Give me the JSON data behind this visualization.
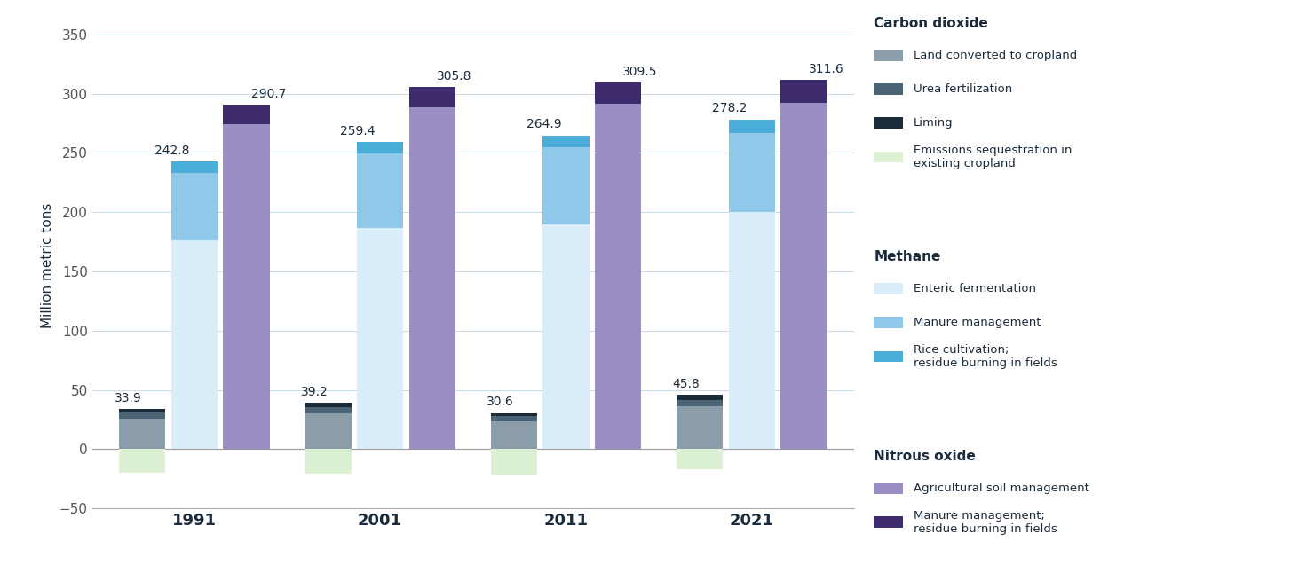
{
  "years": [
    "1991",
    "2001",
    "2011",
    "2021"
  ],
  "co2_totals": [
    33.9,
    39.2,
    30.6,
    45.8
  ],
  "methane_totals": [
    242.8,
    259.4,
    264.9,
    278.2
  ],
  "n2o_totals": [
    290.7,
    305.8,
    309.5,
    311.6
  ],
  "co2": {
    "land_converted": [
      26.0,
      30.5,
      23.5,
      36.0
    ],
    "urea_fert": [
      4.8,
      5.2,
      4.6,
      5.8
    ],
    "liming": [
      3.1,
      3.5,
      2.5,
      4.0
    ],
    "sequestration": [
      -20.0,
      -20.5,
      -22.0,
      -17.0
    ]
  },
  "methane": {
    "enteric_ferm": [
      176.0,
      187.0,
      190.0,
      200.0
    ],
    "manure_mgmt": [
      57.0,
      62.5,
      64.5,
      67.0
    ],
    "rice_cult": [
      9.8,
      9.9,
      10.4,
      11.2
    ]
  },
  "n2o": {
    "ag_soil_mgmt": [
      274.5,
      288.5,
      291.5,
      292.5
    ],
    "manure_mgmt": [
      16.2,
      17.3,
      18.0,
      19.1
    ]
  },
  "colors": {
    "land_converted": "#8B9DA8",
    "urea_fert": "#4A6475",
    "liming": "#1C2B38",
    "sequestration": "#DCF0D4",
    "enteric_ferm": "#D9EEF8",
    "manure_mgmt_ch4": "#8FC8E8",
    "rice_cult": "#4AAED8",
    "ag_soil_mgmt": "#9B8EC4",
    "manure_mgmt_n2o": "#3D2B6E"
  },
  "ylabel": "Million metric tons",
  "ylim": [
    -50,
    360
  ],
  "yticks": [
    -50,
    0,
    50,
    100,
    150,
    200,
    250,
    300,
    350
  ],
  "legend_co2_title": "Carbon dioxide",
  "legend_methane_title": "Methane",
  "legend_n2o_title": "Nitrous oxide",
  "legend_items_co2": [
    "Land converted to cropland",
    "Urea fertilization",
    "Liming",
    "Emissions sequestration in\nexisting cropland"
  ],
  "legend_items_methane": [
    "Enteric fermentation",
    "Manure management",
    "Rice cultivation;\nresidue burning in fields"
  ],
  "legend_items_n2o": [
    "Agricultural soil management",
    "Manure management;\nresidue burning in fields"
  ],
  "bg_color": "#FFFFFF",
  "grid_color": "#C8DCE8",
  "label_fontsize": 11,
  "tick_fontsize": 11,
  "annot_fontsize": 10,
  "text_color": "#1A2B3C"
}
